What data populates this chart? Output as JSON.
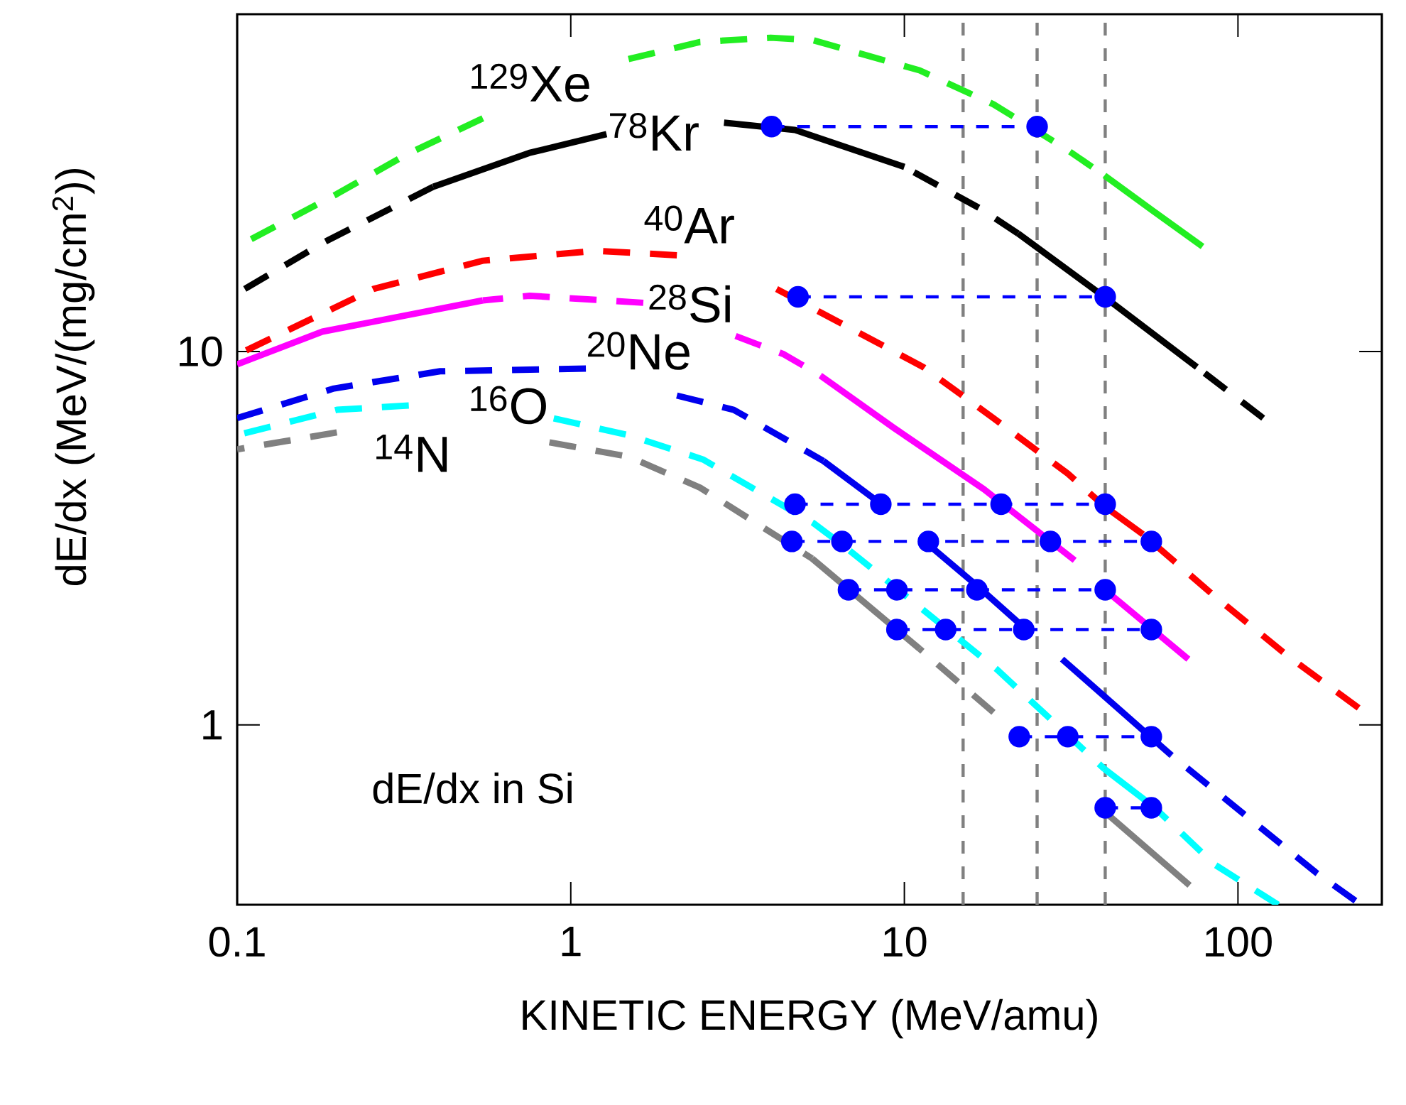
{
  "chart_data": {
    "type": "line",
    "xlabel": "KINETIC ENERGY (MeV/amu)",
    "ylabel": "dE/dx (MeV/(mg/cm$^{2}$))",
    "log": "xy",
    "xlim": [
      0.1,
      270
    ],
    "ylim": [
      0.33,
      80
    ],
    "xticks": [
      0.1,
      1,
      10,
      100
    ],
    "yticks": [
      1,
      10
    ],
    "series": [
      {
        "color": "#22ee22",
        "line_style": "dashed",
        "x": [
          0.1,
          0.199,
          0.324,
          0.545
        ],
        "values": [
          19.1,
          26.4,
          33.8,
          42.1
        ]
      },
      {
        "color": "#22ee22",
        "line_style": "dashed",
        "x": [
          1.49,
          2.44,
          3.98,
          5.34,
          11.1,
          18.5,
          30.3,
          39.8
        ],
        "values": [
          60.7,
          67.4,
          69.2,
          68.1,
          56.6,
          45.9,
          35.0,
          29.6
        ]
      },
      {
        "color": "#22ee22",
        "line_style": "solid",
        "x": [
          39.8,
          55.6,
          78.3
        ],
        "values": [
          29.6,
          23.8,
          19.1
        ]
      },
      {
        "color": "#000000",
        "line_style": "dashed",
        "x": [
          0.1,
          0.18,
          0.387
        ],
        "values": [
          14.3,
          19.5,
          27.6
        ]
      },
      {
        "color": "#000000",
        "line_style": "solid",
        "x": [
          0.387,
          0.75,
          1.28
        ],
        "values": [
          27.6,
          34.0,
          38.2
        ]
      },
      {
        "color": "#000000",
        "line_style": "solid",
        "x": [
          2.88,
          4.7,
          10
        ],
        "values": [
          41.0,
          39.2,
          31.2
        ]
      },
      {
        "color": "#000000",
        "line_style": "dashed",
        "x": [
          10,
          16.8,
          21.9
        ],
        "values": [
          31.2,
          24.2,
          20.7
        ]
      },
      {
        "color": "#000000",
        "line_style": "solid",
        "x": [
          21.9,
          39.8,
          75.3
        ],
        "values": [
          20.7,
          14.0,
          9.08
        ]
      },
      {
        "color": "#000000",
        "line_style": "dashed",
        "x": [
          75.3,
          119
        ],
        "values": [
          9.08,
          6.63
        ]
      },
      {
        "color": "#ff0000",
        "line_style": "dashed",
        "x": [
          0.1,
          0.256,
          0.545,
          1.19,
          2.08
        ],
        "values": [
          9.8,
          14.7,
          17.5,
          18.6,
          18.1
        ]
      },
      {
        "color": "#ff0000",
        "line_style": "dashed",
        "x": [
          4.14,
          11.4,
          18.5,
          30.9,
          39.8
        ],
        "values": [
          14.7,
          9.08,
          6.63,
          4.71,
          3.85
        ]
      },
      {
        "color": "#ff0000",
        "line_style": "solid",
        "x": [
          39.8,
          51.9
        ],
        "values": [
          3.85,
          3.24
        ]
      },
      {
        "color": "#ff0000",
        "line_style": "dashed",
        "x": [
          51.9,
          84.7,
          141,
          230
        ],
        "values": [
          3.24,
          2.22,
          1.53,
          1.11
        ]
      },
      {
        "color": "#ff00ff",
        "line_style": "solid",
        "x": [
          0.1,
          0.18,
          0.545
        ],
        "values": [
          9.24,
          11.3,
          13.7
        ]
      },
      {
        "color": "#ff00ff",
        "line_style": "dashed",
        "x": [
          0.545,
          0.753,
          1.65
        ],
        "values": [
          13.7,
          14.1,
          13.5
        ]
      },
      {
        "color": "#ff00ff",
        "line_style": "dashed",
        "x": [
          3.12,
          4.35,
          5.61
        ],
        "values": [
          11.0,
          9.83,
          8.61
        ]
      },
      {
        "color": "#ff00ff",
        "line_style": "solid",
        "x": [
          5.61,
          9.33,
          17.3,
          32.4
        ],
        "values": [
          8.61,
          6.23,
          4.28,
          2.76
        ]
      },
      {
        "color": "#ff00ff",
        "line_style": "solid",
        "x": [
          41.4,
          71.0
        ],
        "values": [
          2.24,
          1.5
        ]
      },
      {
        "color": "#0000ee",
        "line_style": "dashed",
        "x": [
          0.1,
          0.195,
          0.406,
          1.11
        ],
        "values": [
          6.63,
          7.96,
          8.85,
          9.0
        ]
      },
      {
        "color": "#0000ee",
        "line_style": "dashed",
        "x": [
          2.08,
          3.08,
          5.72
        ],
        "values": [
          7.62,
          6.98,
          5.09
        ]
      },
      {
        "color": "#0000ee",
        "line_style": "solid",
        "x": [
          5.72,
          8.47
        ],
        "values": [
          5.09,
          3.92
        ]
      },
      {
        "color": "#0000ee",
        "line_style": "solid",
        "x": [
          11.7,
          16.5,
          22.9
        ],
        "values": [
          3.06,
          2.36,
          1.82
        ]
      },
      {
        "color": "#0000ee",
        "line_style": "solid",
        "x": [
          29.7,
          63.1
        ],
        "values": [
          1.5,
          0.83
        ]
      },
      {
        "color": "#0000ee",
        "line_style": "dashed",
        "x": [
          63.1,
          171,
          225
        ],
        "values": [
          0.83,
          0.403,
          0.338
        ]
      },
      {
        "color": "#00ffff",
        "line_style": "dashed",
        "x": [
          0.1,
          0.199,
          0.327
        ],
        "values": [
          5.97,
          6.98,
          7.17
        ]
      },
      {
        "color": "#00ffff",
        "line_style": "dashed",
        "x": [
          0.889,
          1.49,
          2.49,
          5.34,
          6.76,
          11.4,
          18.9,
          39.8
        ],
        "values": [
          6.62,
          5.97,
          5.14,
          3.47,
          2.96,
          2.03,
          1.41,
          0.762
        ]
      },
      {
        "color": "#00ffff",
        "line_style": "solid",
        "x": [
          39.8,
          56.1
        ],
        "values": [
          0.762,
          0.602
        ]
      },
      {
        "color": "#00ffff",
        "line_style": "dashed",
        "x": [
          56.1,
          84.7,
          132
        ],
        "values": [
          0.602,
          0.424,
          0.33
        ]
      },
      {
        "color": "#808080",
        "line_style": "dashed",
        "x": [
          0.1,
          0.199
        ],
        "values": [
          5.47,
          6.07
        ]
      },
      {
        "color": "#808080",
        "line_style": "dashed",
        "x": [
          0.863,
          1.49,
          2.44,
          5.29
        ],
        "values": [
          5.71,
          5.23,
          4.32,
          2.79
        ]
      },
      {
        "color": "#808080",
        "line_style": "solid",
        "x": [
          5.29,
          11.1
        ],
        "values": [
          2.79,
          1.6
        ]
      },
      {
        "color": "#808080",
        "line_style": "dashed",
        "x": [
          11.1,
          18.5
        ],
        "values": [
          1.6,
          1.08
        ]
      },
      {
        "color": "#808080",
        "line_style": "solid",
        "x": [
          39.8,
          71.6
        ],
        "values": [
          0.586,
          0.372
        ]
      },
      {
        "color": "#0000ff",
        "line_style": "dashed",
        "marker": "circle",
        "x": [
          4,
          25
        ],
        "values": [
          40,
          40
        ]
      },
      {
        "color": "#0000ff",
        "line_style": "dashed",
        "marker": "circle",
        "x": [
          4.8,
          40
        ],
        "values": [
          14,
          14
        ]
      },
      {
        "color": "#0000ff",
        "line_style": "dashed",
        "marker": "circle",
        "x": [
          4.7,
          8.5,
          19.5,
          40
        ],
        "values": [
          3.9,
          3.9,
          3.9,
          3.9
        ]
      },
      {
        "color": "#0000ff",
        "line_style": "dashed",
        "marker": "circle",
        "x": [
          4.6,
          6.5,
          11.8,
          27.4,
          55
        ],
        "values": [
          3.1,
          3.1,
          3.1,
          3.1,
          3.1
        ]
      },
      {
        "color": "#0000ff",
        "line_style": "dashed",
        "marker": "circle",
        "x": [
          6.8,
          9.5,
          16.5,
          40
        ],
        "values": [
          2.3,
          2.3,
          2.3,
          2.3
        ]
      },
      {
        "color": "#0000ff",
        "line_style": "dashed",
        "marker": "circle",
        "x": [
          9.5,
          13.3,
          22.8,
          55
        ],
        "values": [
          1.8,
          1.8,
          1.8,
          1.8
        ]
      },
      {
        "color": "#0000ff",
        "line_style": "dashed",
        "marker": "circle",
        "x": [
          22.1,
          30.9,
          55
        ],
        "values": [
          0.93,
          0.93,
          0.93
        ]
      },
      {
        "color": "#0000ff",
        "line_style": "dashed",
        "marker": "circle",
        "x": [
          40,
          55
        ],
        "values": [
          0.6,
          0.6
        ]
      }
    ],
    "ref_lines": [
      {
        "axis": "x",
        "value": 15,
        "color": "#808080",
        "line_style": "dashed"
      },
      {
        "axis": "x",
        "value": 25,
        "color": "#808080",
        "line_style": "dashed"
      },
      {
        "axis": "x",
        "value": 40,
        "color": "#808080",
        "line_style": "dashed"
      }
    ],
    "annotations": [
      "$^{129}$Xe",
      "$^{78}$Kr",
      "$^{40}$Ar",
      "$^{28}$Si",
      "$^{20}$Ne",
      "$^{16}$O",
      "$^{14}$N",
      "dE/dx in Si"
    ]
  }
}
